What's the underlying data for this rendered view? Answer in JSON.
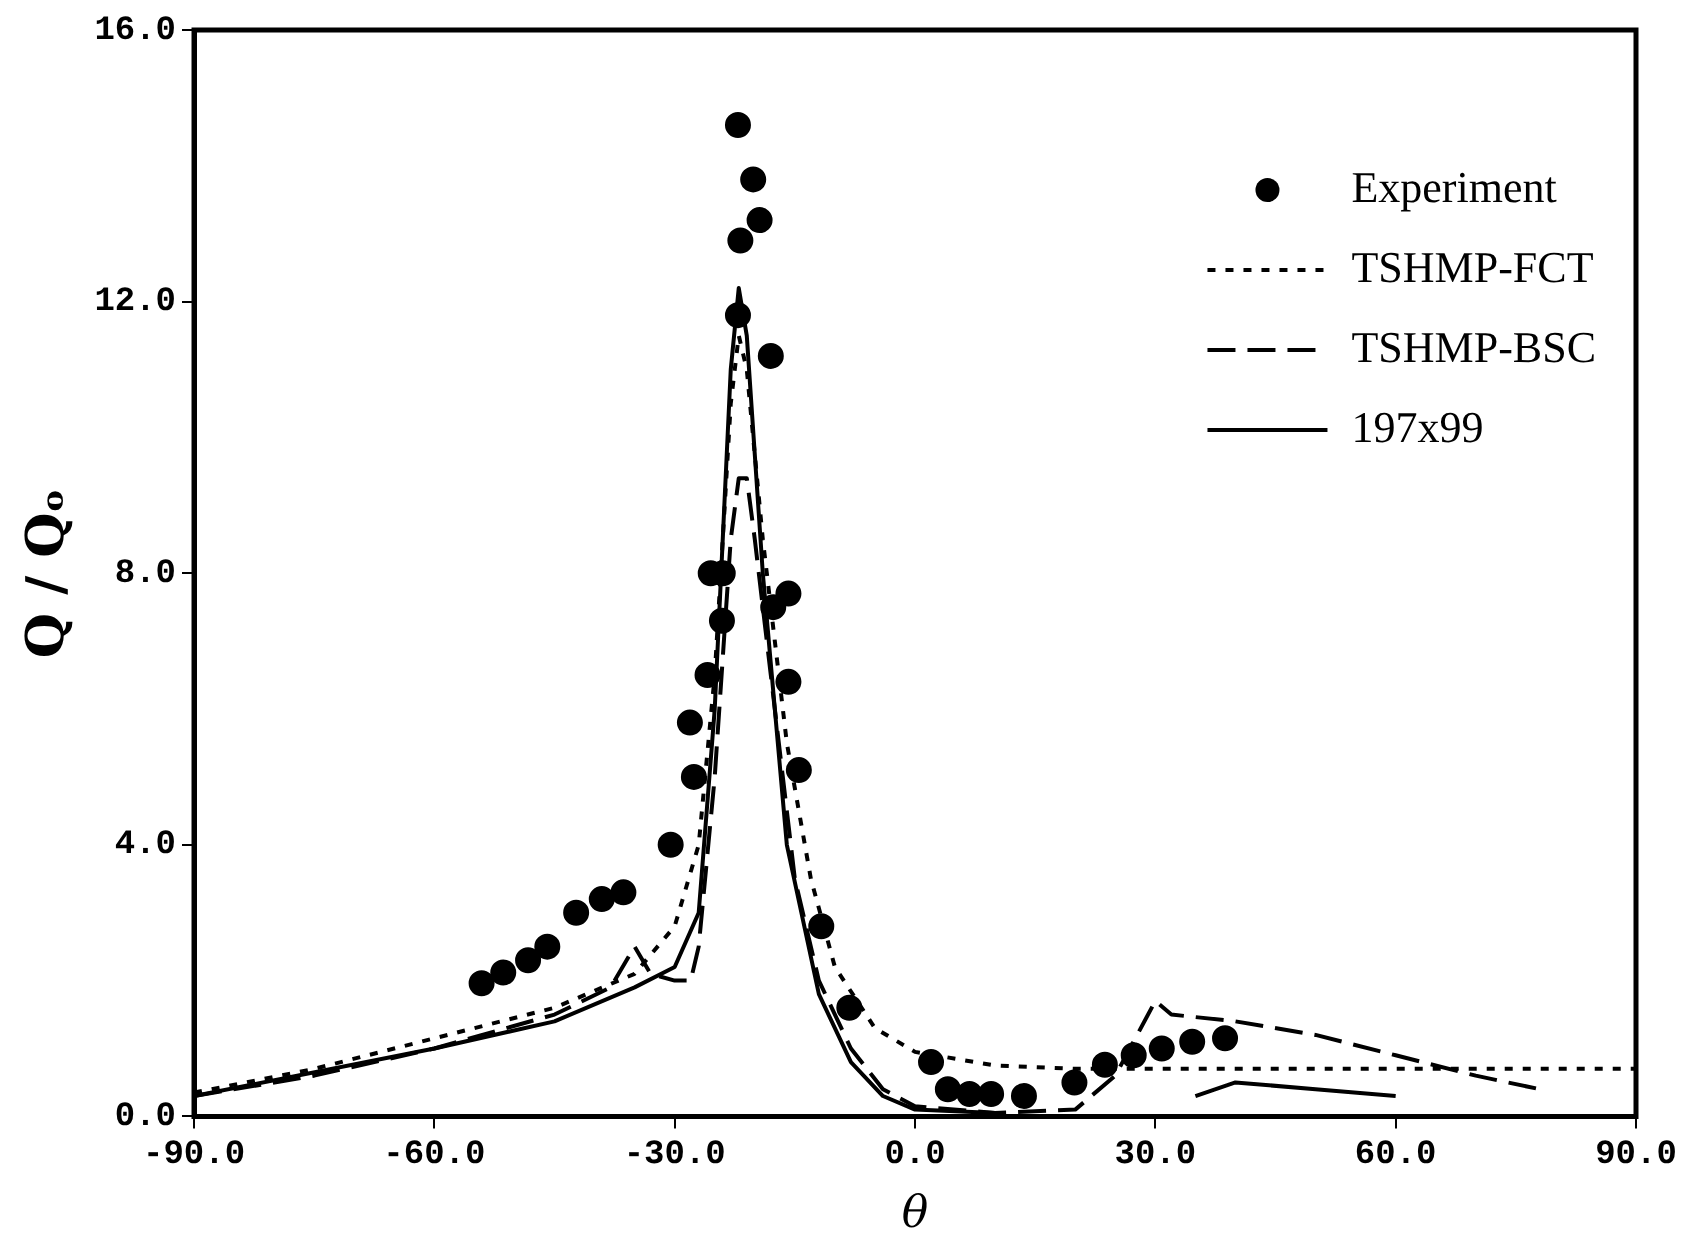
{
  "chart_data": {
    "type": "scatter",
    "xlabel": "θ",
    "ylabel": "Q / Qₒ",
    "xlim": [
      -90,
      90
    ],
    "ylim": [
      0,
      16
    ],
    "xticks": [
      {
        "value": -90,
        "label": "-90.0"
      },
      {
        "value": -60,
        "label": "-60.0"
      },
      {
        "value": -30,
        "label": "-30.0"
      },
      {
        "value": 0,
        "label": "0.0"
      },
      {
        "value": 30,
        "label": "30.0"
      },
      {
        "value": 60,
        "label": "60.0"
      },
      {
        "value": 90,
        "label": "90.0"
      }
    ],
    "yticks": [
      {
        "value": 0,
        "label": "0.0"
      },
      {
        "value": 4,
        "label": "4.0"
      },
      {
        "value": 8,
        "label": "8.0"
      },
      {
        "value": 12,
        "label": "12.0"
      },
      {
        "value": 16,
        "label": "16.0"
      }
    ],
    "grid": false,
    "legend": "top right",
    "series": [
      {
        "name": "Experiment",
        "type": "scatter",
        "marker": "circle",
        "color": "#000000",
        "x": [
          -54.1,
          -51.4,
          -48.3,
          -45.9,
          -42.3,
          -39.1,
          -36.4,
          -30.5,
          -28.1,
          -27.6,
          -25.9,
          -24.1,
          -25.5,
          -24.0,
          -22.1,
          -20.2,
          -19.4,
          -21.8,
          -22.1,
          -18.0,
          -17.7,
          -15.8,
          -15.8,
          -14.5,
          -11.7,
          -8.2,
          2.0,
          4.1,
          6.8,
          9.5,
          13.6,
          19.9,
          23.7,
          27.3,
          30.8,
          34.6,
          38.7
        ],
        "values": [
          1.96,
          2.12,
          2.3,
          2.5,
          3.0,
          3.2,
          3.3,
          4.0,
          5.8,
          5.0,
          6.5,
          7.3,
          8.0,
          8.0,
          14.6,
          13.8,
          13.2,
          12.9,
          11.8,
          11.2,
          7.5,
          7.7,
          6.4,
          5.1,
          2.8,
          1.6,
          0.8,
          0.4,
          0.33,
          0.33,
          0.3,
          0.5,
          0.76,
          0.9,
          1.0,
          1.1,
          1.15
        ]
      },
      {
        "name": "TSHMP-FCT",
        "type": "line",
        "line_style": "dotted",
        "color": "#000000",
        "x": [
          -90,
          -75,
          -60,
          -45,
          -35,
          -30,
          -27,
          -25,
          -23,
          -22,
          -21,
          -19,
          -16,
          -13,
          -10,
          -5,
          0,
          10,
          20,
          30,
          40,
          50,
          60,
          75,
          90
        ],
        "values": [
          0.35,
          0.7,
          1.15,
          1.6,
          2.1,
          2.8,
          4.0,
          6.5,
          10.5,
          11.5,
          11.0,
          8.5,
          5.5,
          3.5,
          2.2,
          1.3,
          0.95,
          0.75,
          0.7,
          0.7,
          0.7,
          0.7,
          0.7,
          0.7,
          0.7
        ]
      },
      {
        "name": "TSHMP-BSC",
        "type": "line",
        "line_style": "dashed",
        "color": "#000000",
        "x": [
          -90,
          -75,
          -60,
          -45,
          -38,
          -35,
          -33,
          -30,
          -28,
          -27,
          -25,
          -23,
          -22,
          -21,
          -20,
          -18,
          -15,
          -12,
          -8,
          -4,
          0,
          10,
          20,
          25,
          30,
          32,
          40,
          50,
          60,
          70,
          78
        ],
        "values": [
          0.3,
          0.6,
          1.0,
          1.5,
          1.9,
          2.5,
          2.1,
          2.0,
          2.0,
          2.5,
          5.0,
          8.5,
          9.4,
          9.4,
          8.5,
          6.5,
          3.5,
          2.0,
          1.0,
          0.4,
          0.15,
          0.05,
          0.1,
          0.6,
          1.7,
          1.5,
          1.4,
          1.2,
          0.9,
          0.6,
          0.4
        ]
      },
      {
        "name": "197x99",
        "type": "line",
        "line_style": "solid",
        "color": "#000000",
        "x": [
          -90,
          -60,
          -45,
          -35,
          -30,
          -27,
          -25,
          -23,
          -22,
          -21,
          -19,
          -16,
          -12,
          -8,
          -4,
          0,
          10,
          20,
          35,
          40,
          50,
          60
        ],
        "values": [
          0.3,
          1.0,
          1.4,
          1.9,
          2.2,
          3.0,
          6.0,
          11.0,
          12.2,
          11.5,
          8.0,
          4.0,
          1.8,
          0.8,
          0.3,
          0.1,
          0.05,
          null,
          0.3,
          0.5,
          0.4,
          0.3
        ]
      }
    ]
  }
}
